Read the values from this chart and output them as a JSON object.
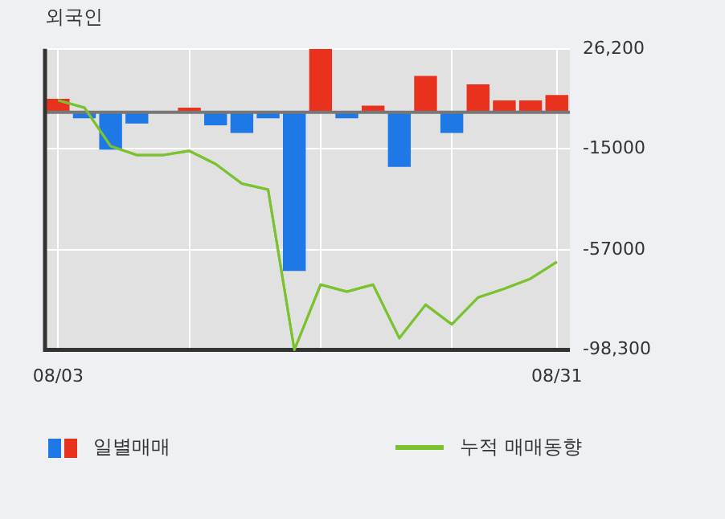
{
  "chart_data": {
    "type": "bar",
    "title": "외국인",
    "categories": [
      "08/03",
      null,
      null,
      null,
      null,
      null,
      null,
      null,
      null,
      null,
      null,
      null,
      null,
      null,
      null,
      null,
      null,
      null,
      null,
      "08/31"
    ],
    "series": [
      {
        "name": "일별매매",
        "colors": [
          "#e8321e",
          "#1e78e6",
          "#1e78e6",
          "#1e78e6",
          "#1e78e6",
          "#e8321e",
          "#1e78e6",
          "#1e78e6",
          "#1e78e6",
          "#1e78e6",
          "#e8321e",
          "#1e78e6",
          "#e8321e",
          "#1e78e6",
          "#e8321e",
          "#1e78e6",
          "#e8321e",
          "#e8321e",
          "#e8321e",
          "#e8321e"
        ],
        "values": [
          5500,
          -2500,
          -15500,
          -4700,
          0,
          1900,
          -5400,
          -8600,
          -2500,
          -65600,
          26200,
          -2500,
          2700,
          -22600,
          15000,
          -8600,
          11500,
          4900,
          4900,
          7100
        ]
      },
      {
        "name": "누적 매매동향",
        "type": "line",
        "color": "#7cc230",
        "values": [
          4900,
          1900,
          -14000,
          -17700,
          -17700,
          -16000,
          -21400,
          -29500,
          -32000,
          -98300,
          -71300,
          -74200,
          -71300,
          -93400,
          -79600,
          -87700,
          -76600,
          -73000,
          -68800,
          -61900
        ]
      }
    ],
    "ylim": [
      -98300,
      26200
    ],
    "yticks": [
      {
        "value": 26200,
        "label": "26,200"
      },
      -15000,
      -57000,
      {
        "value": -98300,
        "label": "-98,300"
      }
    ],
    "grid": true,
    "legend": "bottom",
    "marker": "none"
  }
}
